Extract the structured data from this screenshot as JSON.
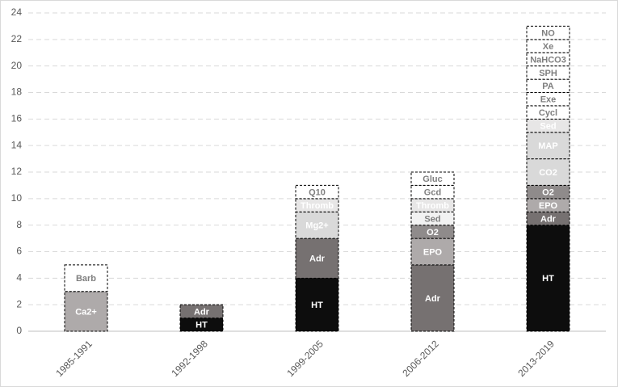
{
  "chart_data": {
    "type": "stacked-bar",
    "categories": [
      "1985-1991",
      "1992-1998",
      "1999-2005",
      "2006-2012",
      "2013-2019"
    ],
    "stacks": [
      {
        "segments": [
          {
            "label": "Ca2+",
            "value": 3,
            "color": "#aeaaaa"
          },
          {
            "label": "Barb",
            "value": 2,
            "color": "#ffffff"
          }
        ]
      },
      {
        "segments": [
          {
            "label": "HT",
            "value": 1,
            "color": "#0d0d0d"
          },
          {
            "label": "Adr",
            "value": 1,
            "color": "#767171"
          }
        ]
      },
      {
        "segments": [
          {
            "label": "HT",
            "value": 4,
            "color": "#0d0d0d"
          },
          {
            "label": "Adr",
            "value": 3,
            "color": "#767171"
          },
          {
            "label": "Mg2+",
            "value": 2,
            "color": "#d9d9d9"
          },
          {
            "label": "Thromb",
            "value": 1,
            "color": "#e7e6e6"
          },
          {
            "label": "Q10",
            "value": 1,
            "color": "#ffffff"
          }
        ]
      },
      {
        "segments": [
          {
            "label": "Adr",
            "value": 5,
            "color": "#767171"
          },
          {
            "label": "EPO",
            "value": 2,
            "color": "#aeaaaa"
          },
          {
            "label": "O2",
            "value": 1,
            "color": "#8f8b8b"
          },
          {
            "label": "Sed",
            "value": 1,
            "color": "#f2f2f2"
          },
          {
            "label": "Thromb",
            "value": 1,
            "color": "#e7e6e6"
          },
          {
            "label": "Gcd",
            "value": 1,
            "color": "#ffffff"
          },
          {
            "label": "Gluc",
            "value": 1,
            "color": "#ffffff"
          }
        ]
      },
      {
        "segments": [
          {
            "label": "HT",
            "value": 8,
            "color": "#0d0d0d"
          },
          {
            "label": "Adr",
            "value": 1,
            "color": "#767171"
          },
          {
            "label": "EPO",
            "value": 1,
            "color": "#aeaaaa"
          },
          {
            "label": "O2",
            "value": 1,
            "color": "#8f8b8b"
          },
          {
            "label": "CO2",
            "value": 2,
            "color": "#d9d9d9"
          },
          {
            "label": "MAP",
            "value": 2,
            "color": "#d9d9d9"
          },
          {
            "label": "Sed",
            "value": 1,
            "color": "#e7e6e6"
          },
          {
            "label": "Cycl",
            "value": 1,
            "color": "#ffffff"
          },
          {
            "label": "Exe",
            "value": 1,
            "color": "#ffffff"
          },
          {
            "label": "PA",
            "value": 1,
            "color": "#ffffff"
          },
          {
            "label": "SPH",
            "value": 1,
            "color": "#ffffff"
          },
          {
            "label": "NaHCO3",
            "value": 1,
            "color": "#ffffff"
          },
          {
            "label": "Xe",
            "value": 1,
            "color": "#ffffff"
          },
          {
            "label": "NO",
            "value": 1,
            "color": "#ffffff"
          }
        ]
      }
    ],
    "ylim": [
      0,
      24
    ],
    "yticks": [
      0,
      2,
      4,
      6,
      8,
      10,
      12,
      14,
      16,
      18,
      20,
      22,
      24
    ],
    "grid": true
  }
}
